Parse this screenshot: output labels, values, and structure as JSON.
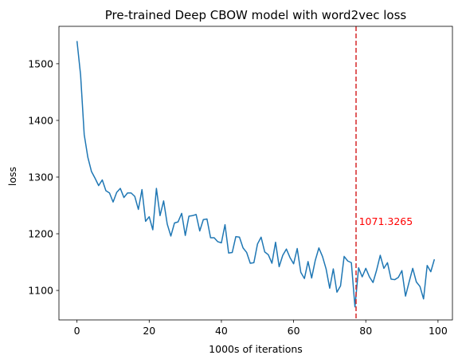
{
  "chart_data": {
    "type": "line",
    "title": "Pre-trained Deep CBOW model with word2vec loss",
    "xlabel": "1000s of iterations",
    "ylabel": "loss",
    "xlim": [
      -5,
      104
    ],
    "ylim": [
      1048,
      1566
    ],
    "xticks": [
      0,
      20,
      40,
      60,
      80,
      100
    ],
    "yticks": [
      1100,
      1200,
      1300,
      1400,
      1500
    ],
    "xtick_labels": [
      "0",
      "20",
      "40",
      "60",
      "80",
      "100"
    ],
    "ytick_labels": [
      "1100",
      "1200",
      "1300",
      "1400",
      "1500"
    ],
    "grid": false,
    "series": [
      {
        "name": "loss",
        "color": "#1f77b4",
        "x": [
          0,
          1,
          2,
          3,
          4,
          5,
          6,
          7,
          8,
          9,
          10,
          11,
          12,
          13,
          14,
          15,
          16,
          17,
          18,
          19,
          20,
          21,
          22,
          23,
          24,
          25,
          26,
          27,
          28,
          29,
          30,
          31,
          32,
          33,
          34,
          35,
          36,
          37,
          38,
          39,
          40,
          41,
          42,
          43,
          44,
          45,
          46,
          47,
          48,
          49,
          50,
          51,
          52,
          53,
          54,
          55,
          56,
          57,
          58,
          59,
          60,
          61,
          62,
          63,
          64,
          65,
          66,
          67,
          68,
          69,
          70,
          71,
          72,
          73,
          74,
          75,
          76,
          77,
          78,
          79,
          80,
          81,
          82,
          83,
          84,
          85,
          86,
          87,
          88,
          89,
          90,
          91,
          92,
          93,
          94,
          95,
          96,
          97,
          98,
          99
        ],
        "y": [
          1540,
          1480,
          1375,
          1335,
          1310,
          1298,
          1285,
          1295,
          1276,
          1272,
          1256,
          1273,
          1280,
          1264,
          1272,
          1272,
          1266,
          1243,
          1278,
          1222,
          1230,
          1207,
          1280,
          1232,
          1258,
          1217,
          1196,
          1219,
          1221,
          1236,
          1197,
          1231,
          1232,
          1234,
          1205,
          1225,
          1226,
          1193,
          1193,
          1186,
          1184,
          1216,
          1166,
          1167,
          1195,
          1194,
          1175,
          1167,
          1148,
          1149,
          1182,
          1194,
          1168,
          1163,
          1148,
          1185,
          1142,
          1162,
          1173,
          1158,
          1147,
          1174,
          1132,
          1121,
          1151,
          1122,
          1153,
          1175,
          1160,
          1138,
          1104,
          1138,
          1097,
          1108,
          1160,
          1152,
          1149,
          1071,
          1140,
          1124,
          1139,
          1124,
          1114,
          1136,
          1162,
          1139,
          1149,
          1120,
          1119,
          1123,
          1135,
          1090,
          1115,
          1139,
          1115,
          1107,
          1085,
          1144,
          1133,
          1155
        ]
      }
    ],
    "vline": {
      "x": 77.3,
      "color": "#d62728",
      "style": "dashed"
    },
    "annotation": {
      "text": "1071.3265",
      "x": 78.1,
      "y": 1221,
      "color": "#ff0000"
    }
  }
}
